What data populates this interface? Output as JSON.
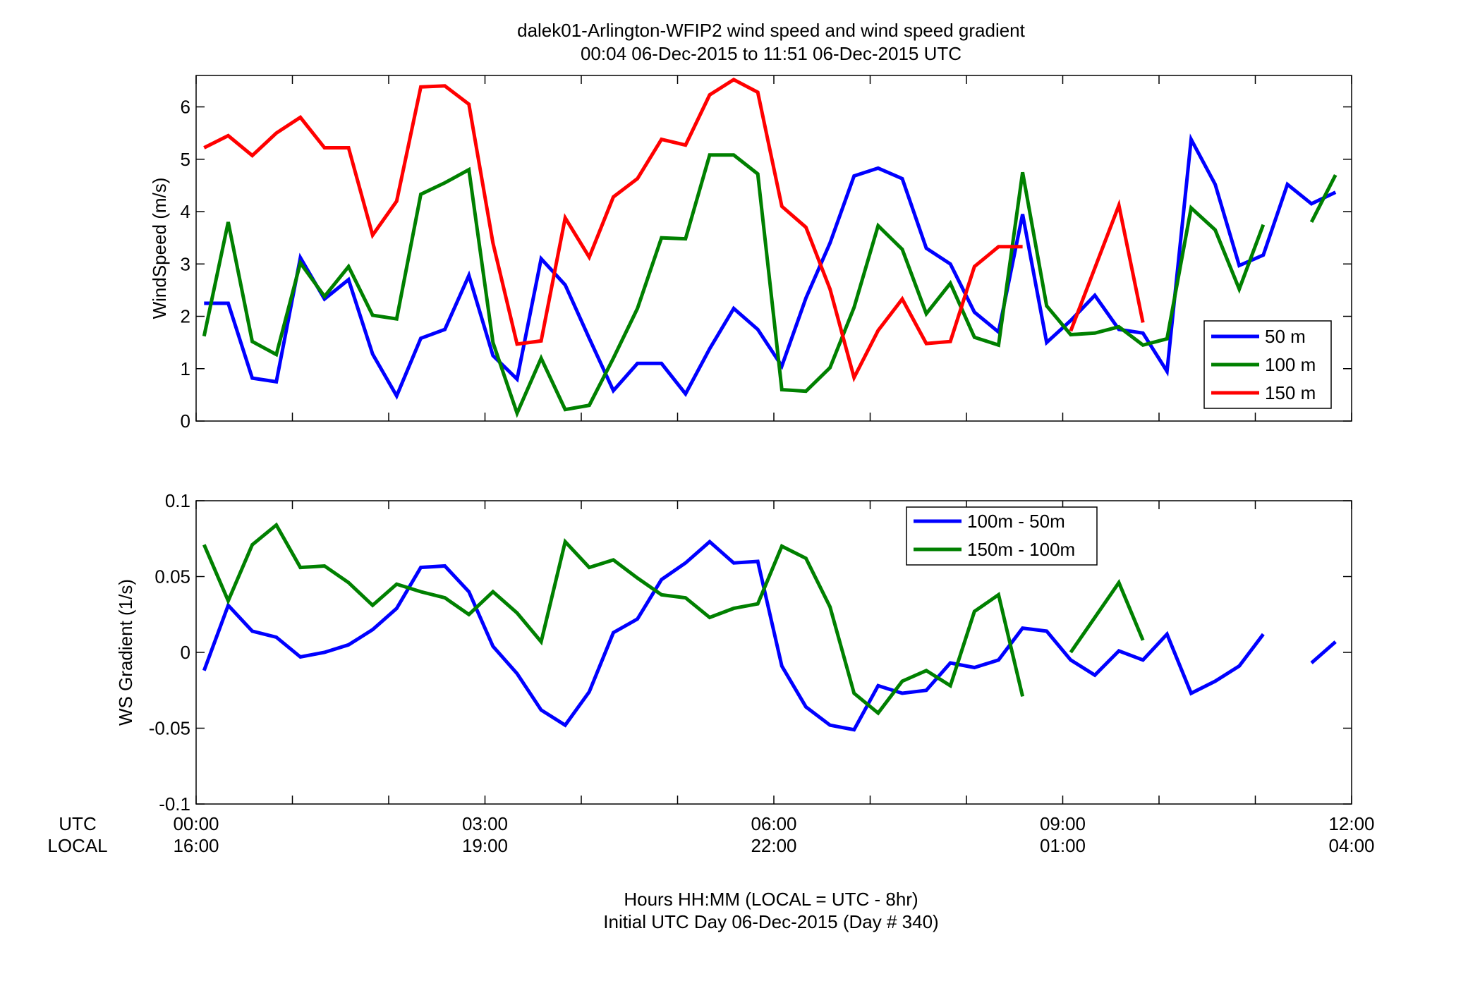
{
  "chart_data": [
    {
      "type": "line",
      "title": "dalek01-Arlington-WFIP2  wind speed and wind speed gradient",
      "subtitle": "00:04 06-Dec-2015 to 11:51 06-Dec-2015  UTC",
      "ylabel": "WindSpeed (m/s)",
      "xlim": [
        0,
        12
      ],
      "ylim": [
        0,
        6.6
      ],
      "yticks": [
        "0",
        "1",
        "2",
        "3",
        "4",
        "5",
        "6"
      ],
      "yticks_values": [
        0,
        1,
        2,
        3,
        4,
        5,
        6
      ],
      "legend_position": "lower-right",
      "series": [
        {
          "name": "50 m",
          "color": "#0000ff",
          "segments": [
            [
              [
                0.083,
                2.25
              ],
              [
                0.333,
                2.25
              ],
              [
                0.583,
                0.82
              ],
              [
                0.833,
                0.75
              ],
              [
                1.083,
                3.12
              ],
              [
                1.333,
                2.33
              ],
              [
                1.583,
                2.7
              ],
              [
                1.833,
                1.28
              ],
              [
                2.083,
                0.48
              ],
              [
                2.333,
                1.58
              ],
              [
                2.583,
                1.75
              ],
              [
                2.833,
                2.78
              ],
              [
                3.083,
                1.25
              ],
              [
                3.333,
                0.8
              ],
              [
                3.583,
                3.1
              ],
              [
                3.833,
                2.6
              ],
              [
                4.083,
                1.58
              ],
              [
                4.333,
                0.58
              ],
              [
                4.583,
                1.1
              ],
              [
                4.833,
                1.1
              ],
              [
                5.083,
                0.52
              ],
              [
                5.333,
                1.38
              ],
              [
                5.583,
                2.15
              ],
              [
                5.833,
                1.75
              ],
              [
                6.083,
                1.05
              ],
              [
                6.333,
                2.35
              ],
              [
                6.583,
                3.4
              ],
              [
                6.833,
                4.68
              ],
              [
                7.083,
                4.83
              ],
              [
                7.333,
                4.63
              ],
              [
                7.583,
                3.3
              ],
              [
                7.833,
                3.0
              ],
              [
                8.083,
                2.08
              ],
              [
                8.333,
                1.7
              ],
              [
                8.583,
                3.95
              ],
              [
                8.833,
                1.5
              ],
              [
                9.083,
                1.92
              ],
              [
                9.333,
                2.4
              ],
              [
                9.583,
                1.75
              ],
              [
                9.833,
                1.68
              ],
              [
                10.083,
                0.95
              ],
              [
                10.333,
                5.38
              ],
              [
                10.583,
                4.52
              ],
              [
                10.833,
                2.97
              ],
              [
                11.083,
                3.17
              ],
              [
                11.333,
                4.52
              ],
              [
                11.583,
                4.15
              ],
              [
                11.833,
                4.37
              ]
            ]
          ]
        },
        {
          "name": "100 m",
          "color": "#008000",
          "segments": [
            [
              [
                0.083,
                1.62
              ],
              [
                0.333,
                3.8
              ],
              [
                0.583,
                1.52
              ],
              [
                0.833,
                1.27
              ],
              [
                1.083,
                3.02
              ],
              [
                1.333,
                2.38
              ],
              [
                1.583,
                2.95
              ],
              [
                1.833,
                2.02
              ],
              [
                2.083,
                1.95
              ],
              [
                2.333,
                4.33
              ],
              [
                2.583,
                4.55
              ],
              [
                2.833,
                4.8
              ],
              [
                3.083,
                1.5
              ],
              [
                3.333,
                0.15
              ],
              [
                3.583,
                1.2
              ],
              [
                3.833,
                0.22
              ],
              [
                4.083,
                0.3
              ],
              [
                4.333,
                1.2
              ],
              [
                4.583,
                2.15
              ],
              [
                4.833,
                3.5
              ],
              [
                5.083,
                3.48
              ],
              [
                5.333,
                5.08
              ],
              [
                5.583,
                5.08
              ],
              [
                5.833,
                4.72
              ],
              [
                6.083,
                0.6
              ],
              [
                6.333,
                0.57
              ],
              [
                6.583,
                1.02
              ],
              [
                6.833,
                2.17
              ],
              [
                7.083,
                3.73
              ],
              [
                7.333,
                3.28
              ],
              [
                7.583,
                2.05
              ],
              [
                7.833,
                2.63
              ],
              [
                8.083,
                1.6
              ],
              [
                8.333,
                1.45
              ],
              [
                8.583,
                4.75
              ],
              [
                8.833,
                2.2
              ],
              [
                9.083,
                1.65
              ],
              [
                9.333,
                1.68
              ],
              [
                9.583,
                1.8
              ],
              [
                9.833,
                1.45
              ],
              [
                10.083,
                1.57
              ],
              [
                10.333,
                4.07
              ],
              [
                10.583,
                3.65
              ],
              [
                10.833,
                2.52
              ],
              [
                11.083,
                3.75
              ]
            ],
            [
              [
                11.583,
                3.8
              ],
              [
                11.833,
                4.7
              ]
            ]
          ]
        },
        {
          "name": "150 m",
          "color": "#ff0000",
          "segments": [
            [
              [
                0.083,
                5.22
              ],
              [
                0.333,
                5.45
              ],
              [
                0.583,
                5.07
              ],
              [
                0.833,
                5.5
              ],
              [
                1.083,
                5.8
              ],
              [
                1.333,
                5.22
              ],
              [
                1.583,
                5.22
              ],
              [
                1.833,
                3.55
              ],
              [
                2.083,
                4.2
              ],
              [
                2.333,
                6.38
              ],
              [
                2.583,
                6.4
              ],
              [
                2.833,
                6.05
              ],
              [
                3.083,
                3.4
              ],
              [
                3.333,
                1.47
              ],
              [
                3.583,
                1.53
              ],
              [
                3.833,
                3.88
              ],
              [
                4.083,
                3.13
              ],
              [
                4.333,
                4.28
              ],
              [
                4.583,
                4.63
              ],
              [
                4.833,
                5.38
              ],
              [
                5.083,
                5.27
              ],
              [
                5.333,
                6.23
              ],
              [
                5.583,
                6.52
              ],
              [
                5.833,
                6.28
              ],
              [
                6.083,
                4.1
              ],
              [
                6.333,
                3.7
              ],
              [
                6.583,
                2.52
              ],
              [
                6.833,
                0.83
              ],
              [
                7.083,
                1.73
              ],
              [
                7.333,
                2.33
              ],
              [
                7.583,
                1.48
              ],
              [
                7.833,
                1.52
              ],
              [
                8.083,
                2.95
              ],
              [
                8.333,
                3.33
              ],
              [
                8.583,
                3.33
              ]
            ],
            [
              [
                9.083,
                1.72
              ],
              [
                9.583,
                4.12
              ],
              [
                9.833,
                1.88
              ]
            ]
          ]
        }
      ]
    },
    {
      "type": "line",
      "ylabel": "WS Gradient (1/s)",
      "xlabel": "Hours HH:MM  (LOCAL = UTC - 8hr)",
      "xlabel2": "Initial UTC Day 06-Dec-2015 (Day # 340)",
      "xlim": [
        0,
        12
      ],
      "ylim": [
        -0.1,
        0.1
      ],
      "yticks": [
        "-0.1",
        "-0.05",
        "0",
        "0.05",
        "0.1"
      ],
      "yticks_values": [
        -0.1,
        -0.05,
        0,
        0.05,
        0.1
      ],
      "xtick_values": [
        0,
        3,
        6,
        9,
        12
      ],
      "xticks_utc": [
        "00:00",
        "03:00",
        "06:00",
        "09:00",
        "12:00"
      ],
      "xticks_local": [
        "16:00",
        "19:00",
        "22:00",
        "01:00",
        "04:00"
      ],
      "xtick_row_labels": [
        "UTC",
        "LOCAL"
      ],
      "legend_position": "top-center",
      "series": [
        {
          "name": "100m - 50m",
          "color": "#0000ff",
          "segments": [
            [
              [
                0.083,
                -0.012
              ],
              [
                0.333,
                0.031
              ],
              [
                0.583,
                0.014
              ],
              [
                0.833,
                0.01
              ],
              [
                1.083,
                -0.003
              ],
              [
                1.333,
                0.0
              ],
              [
                1.583,
                0.005
              ],
              [
                1.833,
                0.015
              ],
              [
                2.083,
                0.029
              ],
              [
                2.333,
                0.056
              ],
              [
                2.583,
                0.057
              ],
              [
                2.833,
                0.04
              ],
              [
                3.083,
                0.004
              ],
              [
                3.333,
                -0.014
              ],
              [
                3.583,
                -0.038
              ],
              [
                3.833,
                -0.048
              ],
              [
                4.083,
                -0.026
              ],
              [
                4.333,
                0.013
              ],
              [
                4.583,
                0.022
              ],
              [
                4.833,
                0.048
              ],
              [
                5.083,
                0.059
              ],
              [
                5.333,
                0.073
              ],
              [
                5.583,
                0.059
              ],
              [
                5.833,
                0.06
              ],
              [
                6.083,
                -0.009
              ],
              [
                6.333,
                -0.036
              ],
              [
                6.583,
                -0.048
              ],
              [
                6.833,
                -0.051
              ],
              [
                7.083,
                -0.022
              ],
              [
                7.333,
                -0.027
              ],
              [
                7.583,
                -0.025
              ],
              [
                7.833,
                -0.007
              ],
              [
                8.083,
                -0.01
              ],
              [
                8.333,
                -0.005
              ],
              [
                8.583,
                0.016
              ],
              [
                8.833,
                0.014
              ],
              [
                9.083,
                -0.005
              ],
              [
                9.333,
                -0.015
              ],
              [
                9.583,
                0.001
              ],
              [
                9.833,
                -0.005
              ],
              [
                10.083,
                0.012
              ],
              [
                10.333,
                -0.027
              ],
              [
                10.583,
                -0.019
              ],
              [
                10.833,
                -0.009
              ],
              [
                11.083,
                0.012
              ]
            ],
            [
              [
                11.583,
                -0.007
              ],
              [
                11.833,
                0.007
              ]
            ]
          ]
        },
        {
          "name": "150m - 100m",
          "color": "#008000",
          "segments": [
            [
              [
                0.083,
                0.071
              ],
              [
                0.333,
                0.034
              ],
              [
                0.583,
                0.071
              ],
              [
                0.833,
                0.084
              ],
              [
                1.083,
                0.056
              ],
              [
                1.333,
                0.057
              ],
              [
                1.583,
                0.046
              ],
              [
                1.833,
                0.031
              ],
              [
                2.083,
                0.045
              ],
              [
                2.333,
                0.04
              ],
              [
                2.583,
                0.036
              ],
              [
                2.833,
                0.025
              ],
              [
                3.083,
                0.04
              ],
              [
                3.333,
                0.026
              ],
              [
                3.583,
                0.007
              ],
              [
                3.833,
                0.073
              ],
              [
                4.083,
                0.056
              ],
              [
                4.333,
                0.061
              ],
              [
                4.583,
                0.049
              ],
              [
                4.833,
                0.038
              ],
              [
                5.083,
                0.036
              ],
              [
                5.333,
                0.023
              ],
              [
                5.583,
                0.029
              ],
              [
                5.833,
                0.032
              ],
              [
                6.083,
                0.07
              ],
              [
                6.333,
                0.062
              ],
              [
                6.583,
                0.03
              ],
              [
                6.833,
                -0.027
              ],
              [
                7.083,
                -0.04
              ],
              [
                7.333,
                -0.019
              ],
              [
                7.583,
                -0.012
              ],
              [
                7.833,
                -0.022
              ],
              [
                8.083,
                0.027
              ],
              [
                8.333,
                0.038
              ],
              [
                8.583,
                -0.029
              ]
            ],
            [
              [
                9.083,
                0.0
              ],
              [
                9.583,
                0.046
              ],
              [
                9.833,
                0.008
              ]
            ]
          ]
        }
      ]
    }
  ]
}
